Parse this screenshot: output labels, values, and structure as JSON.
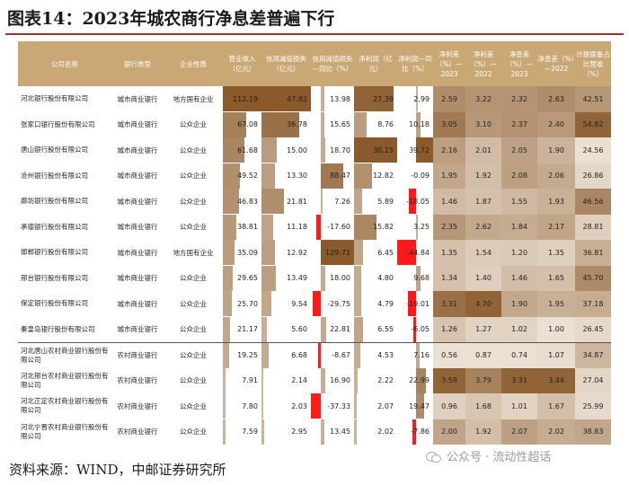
{
  "title": "图表14：2023年城农商行净息差普遍下行",
  "footer": "资料来源：WIND，中邮证券研究所",
  "watermark": "公众号 · 流动性超话",
  "colors": {
    "header_bg": "#c9a876",
    "bar_dark": "#8a5a2b",
    "bar_light": "#f4ece2",
    "negative": "#ff1a1a",
    "rule": "#a0322d"
  },
  "columns": [
    "公司名称",
    "银行类型",
    "企业性质",
    "营业收入（亿元）",
    "信用减值损失（亿元）",
    "信用减值损失—同比（%）",
    "净利润（亿元）",
    "净利润—同比（%）",
    "净利差（%）—2023",
    "净利差（%）—2022",
    "净息差（%）—2023",
    "净息差（%）—2022",
    "计提拨备占比营收（%）"
  ],
  "rows": [
    {
      "name": "河北银行股份有限公司",
      "type": "城市商业银行",
      "nature": "地方国有企业",
      "rev": "112.19",
      "imp": "47.82",
      "imp_yoy": "13.98",
      "np": "27.39",
      "np_yoy": "2.99",
      "nis23": "2.59",
      "nis22": "3.22",
      "nim23": "2.32",
      "nim22": "2.63",
      "prov": "42.51"
    },
    {
      "name": "张家口银行股份有限公司",
      "type": "城市商业银行",
      "nature": "公众企业",
      "rev": "67.08",
      "imp": "36.78",
      "imp_yoy": "15.65",
      "np": "8.76",
      "np_yoy": "10.18",
      "nis23": "3.05",
      "nis22": "3.10",
      "nim23": "2.37",
      "nim22": "2.40",
      "prov": "54.82"
    },
    {
      "name": "唐山银行股份有限公司",
      "type": "城市商业银行",
      "nature": "公众企业",
      "rev": "61.68",
      "imp": "15.00",
      "imp_yoy": "18.70",
      "np": "30.15",
      "np_yoy": "39.72",
      "nis23": "2.16",
      "nis22": "2.01",
      "nim23": "2.05",
      "nim22": "1.90",
      "prov": "24.56"
    },
    {
      "name": "沧州银行股份有限公司",
      "type": "城市商业银行",
      "nature": "公众企业",
      "rev": "49.52",
      "imp": "13.30",
      "imp_yoy": "88.47",
      "np": "12.82",
      "np_yoy": "-0.09",
      "nis23": "1.95",
      "nis22": "1.92",
      "nim23": "2.08",
      "nim22": "2.06",
      "prov": "26.86"
    },
    {
      "name": "廊坊银行股份有限公司",
      "type": "城市商业银行",
      "nature": "公众企业",
      "rev": "46.83",
      "imp": "21.81",
      "imp_yoy": "7.26",
      "np": "5.89",
      "np_yoy": "-18.05",
      "nis23": "1.46",
      "nis22": "1.87",
      "nim23": "1.55",
      "nim22": "1.93",
      "prov": "46.56"
    },
    {
      "name": "承德银行股份有限公司",
      "type": "城市商业银行",
      "nature": "公众企业",
      "rev": "38.81",
      "imp": "11.18",
      "imp_yoy": "-17.60",
      "np": "15.82",
      "np_yoy": "3.25",
      "nis23": "2.35",
      "nis22": "2.62",
      "nim23": "1.84",
      "nim22": "2.17",
      "prov": "28.81"
    },
    {
      "name": "邯郸银行股份有限公司",
      "type": "城市商业银行",
      "nature": "地方国有企业",
      "rev": "35.09",
      "imp": "12.92",
      "imp_yoy": "129.71",
      "np": "6.45",
      "np_yoy": "-44.84",
      "nis23": "1.35",
      "nis22": "1.54",
      "nim23": "1.20",
      "nim22": "1.35",
      "prov": "36.81"
    },
    {
      "name": "邢台银行股份有限公司",
      "type": "城市商业银行",
      "nature": "公众企业",
      "rev": "29.65",
      "imp": "13.49",
      "imp_yoy": "18.00",
      "np": "4.80",
      "np_yoy": "9.68",
      "nis23": "1.34",
      "nis22": "1.40",
      "nim23": "1.46",
      "nim22": "1.65",
      "prov": "45.70"
    },
    {
      "name": "保定银行股份有限公司",
      "type": "城市商业银行",
      "nature": "公众企业",
      "rev": "25.70",
      "imp": "9.54",
      "imp_yoy": "-29.75",
      "np": "4.79",
      "np_yoy": "-19.01",
      "nis23": "3.31",
      "nis22": "4.70",
      "nim23": "1.90",
      "nim22": "1.95",
      "prov": "37.18"
    },
    {
      "name": "秦皇岛银行股份有限公司",
      "type": "城市商业银行",
      "nature": "公众企业",
      "rev": "21.17",
      "imp": "5.60",
      "imp_yoy": "22.81",
      "np": "6.55",
      "np_yoy": "-6.05",
      "nis23": "1.26",
      "nis22": "1.27",
      "nim23": "1.02",
      "nim22": "1.00",
      "prov": "26.45"
    },
    {
      "name": "河北唐山农村商业银行股份有限公司",
      "type": "农村商业银行",
      "nature": "公众企业",
      "rev": "19.25",
      "imp": "6.68",
      "imp_yoy": "-8.67",
      "np": "4.53",
      "np_yoy": "7.16",
      "nis23": "0.56",
      "nis22": "0.87",
      "nim23": "0.74",
      "nim22": "1.07",
      "prov": "34.87"
    },
    {
      "name": "河北邢台农村商业银行股份有限公司",
      "type": "农村商业银行",
      "nature": "公众企业",
      "rev": "7.91",
      "imp": "2.14",
      "imp_yoy": "16.90",
      "np": "2.22",
      "np_yoy": "22.99",
      "nis23": "3.59",
      "nis22": "3.79",
      "nim23": "3.31",
      "nim22": "3.44",
      "prov": "27.04"
    },
    {
      "name": "河北正定农村商业银行股份有限公司",
      "type": "农村商业银行",
      "nature": "公众企业",
      "rev": "7.80",
      "imp": "2.03",
      "imp_yoy": "-37.33",
      "np": "2.07",
      "np_yoy": "19.47",
      "nis23": "0.96",
      "nis22": "1.68",
      "nim23": "1.01",
      "nim22": "1.67",
      "prov": "25.99"
    },
    {
      "name": "河北宁晋农村商业银行股份有限公司",
      "type": "农村商业银行",
      "nature": "公众企业",
      "rev": "7.59",
      "imp": "2.95",
      "imp_yoy": "13.45",
      "np": "2.02",
      "np_yoy": "-7.86",
      "nis23": "2.00",
      "nis22": "1.92",
      "nim23": "2.07",
      "nim22": "2.02",
      "prov": "38.83"
    }
  ]
}
